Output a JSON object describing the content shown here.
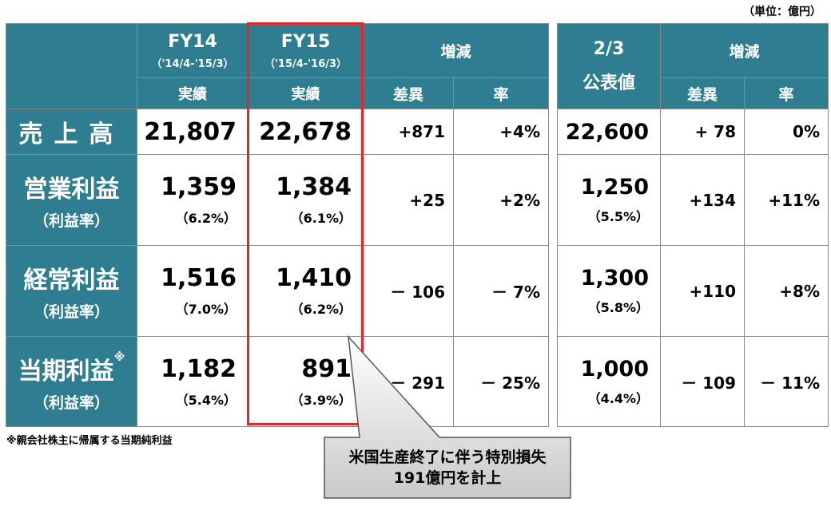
{
  "unit_label": "（単位：億円）",
  "footnote": "※親会社株主に帰属する当期純利益",
  "callout": {
    "line1": "米国生産終了に伴う特別損失",
    "line2": "191億円を計上"
  },
  "headers": {
    "fy14": "FY14",
    "fy14_period": "（'14/4-'15/3）",
    "fy15": "FY15",
    "fy15_period": "（'15/4-'16/3）",
    "actual": "実績",
    "change": "増減",
    "diff": "差異",
    "rate": "率",
    "forecast_date": "2/3",
    "forecast_label": "公表値",
    "change2": "増減",
    "diff2": "差異",
    "rate2": "率"
  },
  "rows": [
    {
      "label": "売上高",
      "sub": "",
      "fy14": "21,807",
      "fy14_pct": "",
      "fy15": "22,678",
      "fy15_pct": "",
      "diff": "+871",
      "rate": "+4%",
      "forecast": "22,600",
      "forecast_pct": "",
      "fdiff": "+ 78",
      "frate": "0%"
    },
    {
      "label": "営業利益",
      "sub": "（利益率）",
      "fy14": "1,359",
      "fy14_pct": "（6.2%）",
      "fy15": "1,384",
      "fy15_pct": "（6.1%）",
      "diff": "+25",
      "rate": "+2%",
      "forecast": "1,250",
      "forecast_pct": "（5.5%）",
      "fdiff": "+134",
      "frate": "+11%"
    },
    {
      "label": "経常利益",
      "sub": "（利益率）",
      "fy14": "1,516",
      "fy14_pct": "（7.0%）",
      "fy15": "1,410",
      "fy15_pct": "（6.2%）",
      "diff": "－ 106",
      "rate": "－ 7%",
      "forecast": "1,300",
      "forecast_pct": "（5.8%）",
      "fdiff": "+110",
      "frate": "+8%"
    },
    {
      "label": "当期利益",
      "label_mark": "※",
      "sub": "（利益率）",
      "fy14": "1,182",
      "fy14_pct": "（5.4%）",
      "fy15": "891",
      "fy15_pct": "（3.9%）",
      "diff": "－ 291",
      "rate": "－ 25%",
      "forecast": "1,000",
      "forecast_pct": "（4.4%）",
      "fdiff": "－ 109",
      "frate": "－ 11%"
    }
  ]
}
